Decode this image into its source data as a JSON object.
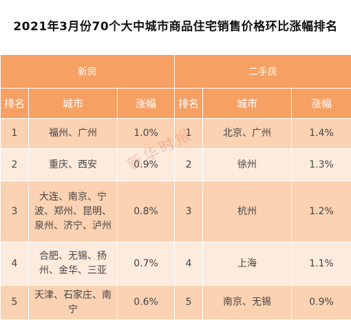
{
  "title": "2021年3月份70个大中城市商品住宅销售价格环比涨幅排名",
  "sections": {
    "new": "新房",
    "second": "二手房"
  },
  "headers": {
    "rank": "排名",
    "city": "城市",
    "change": "涨幅"
  },
  "rows": [
    {
      "new": {
        "rank": "1",
        "city": "福州、广州",
        "change": "1.0%"
      },
      "second": {
        "rank": "1",
        "city": "北京、广州",
        "change": "1.4%"
      }
    },
    {
      "new": {
        "rank": "2",
        "city": "重庆、西安",
        "change": "0.9%"
      },
      "second": {
        "rank": "2",
        "city": "徐州",
        "change": "1.3%"
      }
    },
    {
      "new": {
        "rank": "3",
        "city": "大连、南京、宁波、郑州、昆明、泉州、济宁、泸州",
        "change": "0.8%"
      },
      "second": {
        "rank": "3",
        "city": "杭州",
        "change": "1.2%"
      }
    },
    {
      "new": {
        "rank": "4",
        "city": "合肥、无锡、扬州、金华、三亚",
        "change": "0.7%"
      },
      "second": {
        "rank": "4",
        "city": "上海",
        "change": "1.1%"
      }
    },
    {
      "new": {
        "rank": "5",
        "city": "天津、石家庄、南宁",
        "change": "0.6%"
      },
      "second": {
        "rank": "5",
        "city": "南京、无锡",
        "change": "0.9%"
      }
    }
  ],
  "watermark": "新华时报"
}
